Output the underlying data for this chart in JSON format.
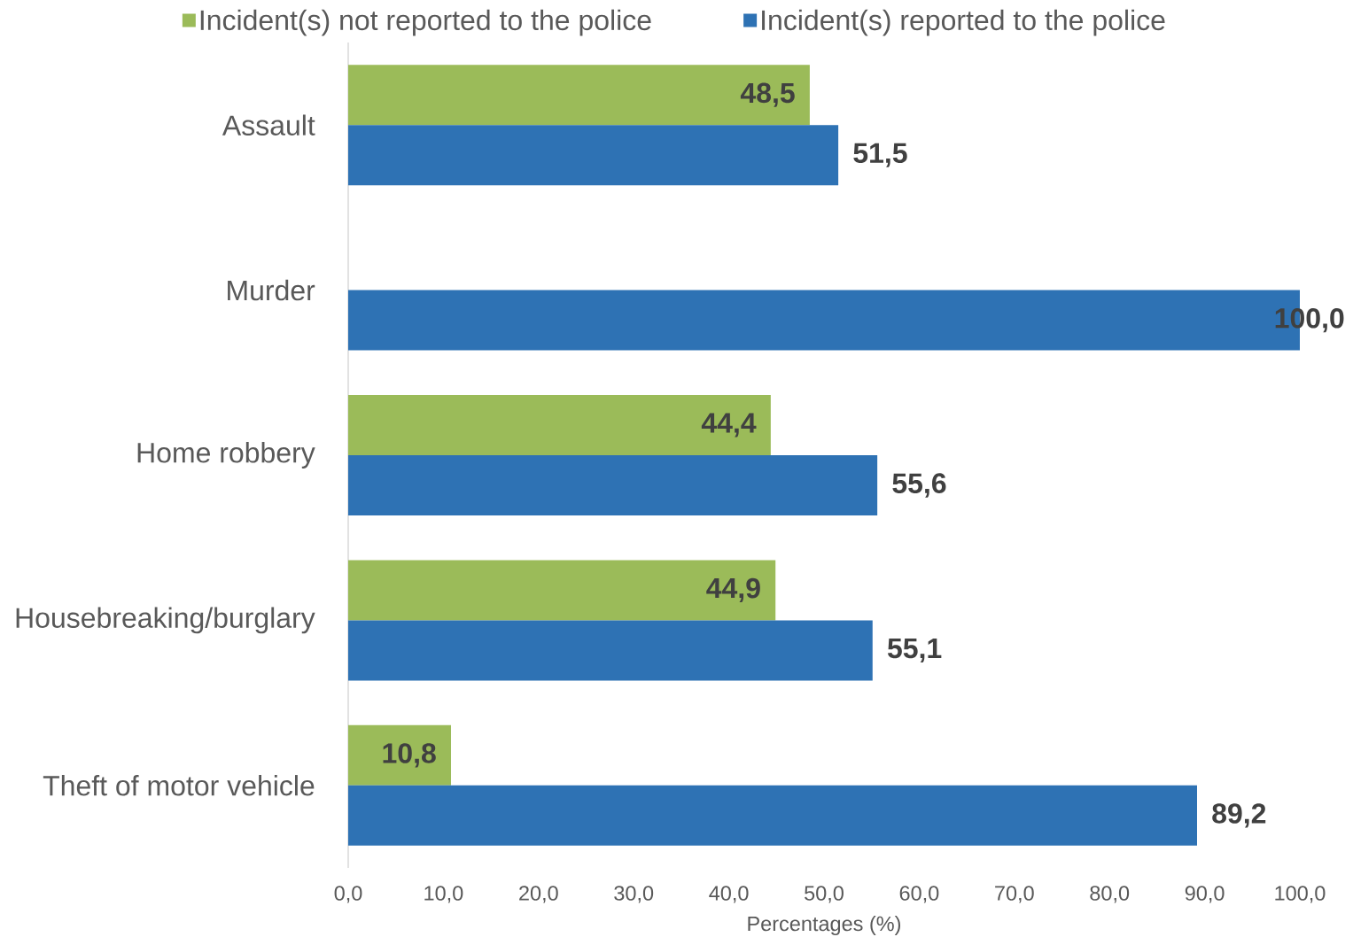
{
  "chart_data": {
    "type": "bar",
    "orientation": "horizontal",
    "legend": "top",
    "categories": [
      "Assault",
      "Murder",
      "Home robbery",
      "Housebreaking/burglary",
      "Theft of motor vehicle"
    ],
    "series": [
      {
        "name": "Incident(s) not reported to the police",
        "color": "#9bbb59",
        "values": [
          48.5,
          null,
          44.4,
          44.9,
          10.8
        ],
        "value_labels": [
          "48,5",
          null,
          "44,4",
          "44,9",
          "10,8"
        ]
      },
      {
        "name": "Incident(s) reported to the police",
        "color": "#2e72b4",
        "values": [
          51.5,
          100.0,
          55.6,
          55.1,
          89.2
        ],
        "value_labels": [
          "51,5",
          "100,0",
          "55,6",
          "55,1",
          "89,2"
        ]
      }
    ],
    "xlabel": "Percentages (%)",
    "xlim": [
      0,
      100
    ],
    "xticks": [
      {
        "value": 0,
        "label": "0,0"
      },
      {
        "value": 10,
        "label": "10,0"
      },
      {
        "value": 20,
        "label": "20,0"
      },
      {
        "value": 30,
        "label": "30,0"
      },
      {
        "value": 40,
        "label": "40,0"
      },
      {
        "value": 50,
        "label": "50,0"
      },
      {
        "value": 60,
        "label": "60,0"
      },
      {
        "value": 70,
        "label": "70,0"
      },
      {
        "value": 80,
        "label": "80,0"
      },
      {
        "value": 90,
        "label": "90,0"
      },
      {
        "value": 100,
        "label": "100,0"
      }
    ]
  }
}
